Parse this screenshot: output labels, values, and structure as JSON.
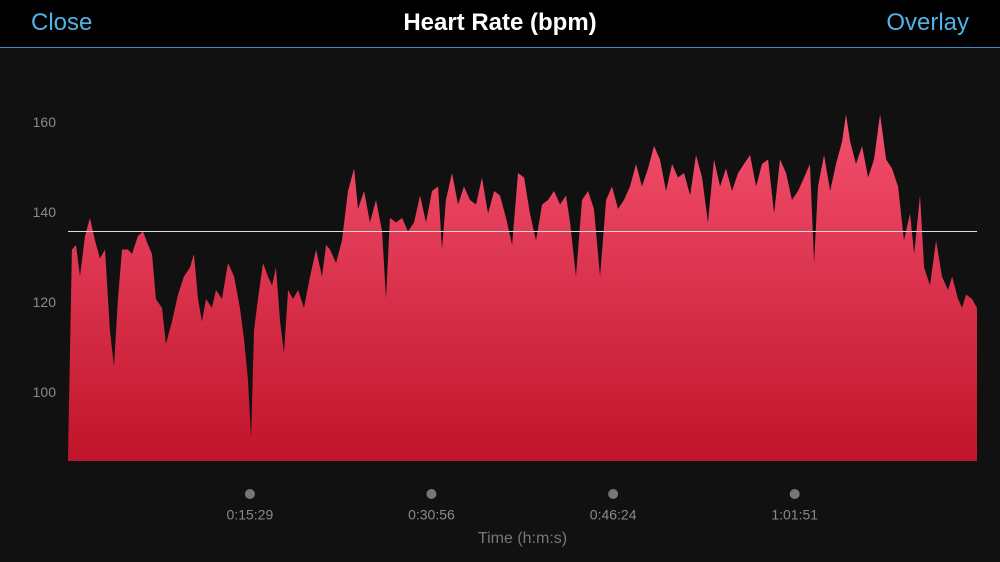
{
  "header": {
    "left_button": "Close",
    "title": "Heart Rate (bpm)",
    "right_button": "Overlay"
  },
  "chart_data": {
    "type": "area",
    "x_label": "Time (h:m:s)",
    "xlim": [
      0,
      4642
    ],
    "xticks": [
      {
        "value": 929,
        "label": "0:15:29"
      },
      {
        "value": 1856,
        "label": "0:30:56"
      },
      {
        "value": 2784,
        "label": "0:46:24"
      },
      {
        "value": 3711,
        "label": "1:01:51"
      }
    ],
    "ylim": [
      85,
      174
    ],
    "yticks": [
      100,
      120,
      140,
      160
    ],
    "grid": false,
    "average": 136,
    "series": [
      {
        "color": "#c0142a",
        "x": [
          0,
          20,
          41,
          61,
          87,
          112,
          138,
          163,
          189,
          214,
          235,
          255,
          276,
          306,
          327,
          357,
          383,
          409,
          429,
          449,
          480,
          500,
          531,
          562,
          592,
          623,
          643,
          664,
          684,
          705,
          735,
          756,
          786,
          817,
          848,
          878,
          899,
          919,
          935,
          950,
          970,
          996,
          1021,
          1042,
          1062,
          1083,
          1103,
          1124,
          1149,
          1175,
          1205,
          1236,
          1267,
          1297,
          1318,
          1338,
          1369,
          1399,
          1430,
          1461,
          1481,
          1512,
          1542,
          1573,
          1604,
          1624,
          1644,
          1675,
          1706,
          1736,
          1767,
          1798,
          1828,
          1859,
          1890,
          1910,
          1930,
          1961,
          1992,
          2022,
          2053,
          2084,
          2114,
          2145,
          2176,
          2206,
          2237,
          2268,
          2298,
          2329,
          2359,
          2390,
          2421,
          2451,
          2482,
          2513,
          2543,
          2564,
          2594,
          2625,
          2656,
          2686,
          2717,
          2748,
          2778,
          2809,
          2839,
          2870,
          2901,
          2931,
          2962,
          2993,
          3023,
          3054,
          3085,
          3115,
          3146,
          3177,
          3207,
          3238,
          3268,
          3299,
          3330,
          3360,
          3391,
          3422,
          3452,
          3483,
          3514,
          3544,
          3575,
          3606,
          3636,
          3667,
          3697,
          3728,
          3759,
          3789,
          3810,
          3830,
          3861,
          3892,
          3922,
          3953,
          3973,
          3994,
          4024,
          4055,
          4086,
          4116,
          4147,
          4178,
          4208,
          4239,
          4269,
          4300,
          4321,
          4351,
          4372,
          4402,
          4433,
          4463,
          4494,
          4515,
          4545,
          4566,
          4586,
          4617,
          4642
        ],
        "values": [
          86,
          132,
          133,
          126,
          135,
          139,
          134,
          130,
          132,
          114,
          106,
          121,
          132,
          132,
          131,
          135,
          136,
          133,
          131,
          121,
          119,
          111,
          116,
          122,
          126,
          128,
          131,
          121,
          116,
          121,
          119,
          123,
          121,
          129,
          126,
          119,
          112,
          103,
          90,
          114,
          121,
          129,
          126,
          124,
          128,
          116,
          109,
          123,
          121,
          123,
          119,
          126,
          132,
          126,
          133,
          132,
          129,
          134,
          145,
          150,
          141,
          145,
          138,
          143,
          136,
          121,
          139,
          138,
          139,
          136,
          138,
          144,
          138,
          145,
          146,
          132,
          143,
          149,
          142,
          146,
          143,
          142,
          148,
          140,
          145,
          144,
          139,
          133,
          149,
          148,
          140,
          134,
          142,
          143,
          145,
          142,
          144,
          138,
          126,
          143,
          145,
          141,
          126,
          143,
          146,
          141,
          143,
          146,
          151,
          146,
          150,
          155,
          152,
          145,
          151,
          148,
          149,
          144,
          153,
          148,
          138,
          152,
          146,
          150,
          145,
          149,
          151,
          153,
          146,
          151,
          152,
          140,
          152,
          149,
          143,
          145,
          148,
          151,
          129,
          146,
          153,
          145,
          151,
          156,
          162,
          156,
          151,
          155,
          148,
          152,
          162,
          152,
          150,
          146,
          134,
          140,
          131,
          144,
          128,
          124,
          134,
          126,
          123,
          126,
          121,
          119,
          122,
          121,
          119
        ]
      }
    ]
  }
}
